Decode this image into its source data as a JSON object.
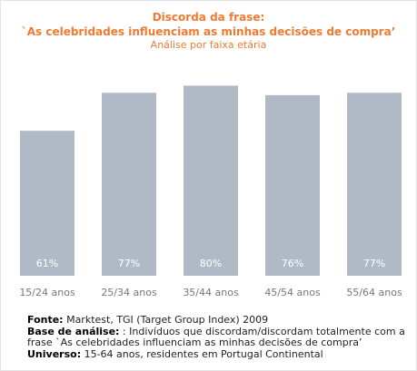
{
  "chart_data": {
    "type": "bar",
    "title": "Discorda da frase:",
    "subtitle": "`As celebridades influenciam as minhas decisões de compra’",
    "subtitle2": "Análise por faixa etária",
    "categories": [
      "15/24 anos",
      "25/34 anos",
      "35/44 anos",
      "45/54 anos",
      "55/64 anos"
    ],
    "values": [
      61,
      77,
      80,
      76,
      77
    ],
    "value_labels": [
      "61%",
      "77%",
      "80%",
      "76%",
      "77%"
    ],
    "ylim": [
      0,
      100
    ],
    "xlabel": "",
    "ylabel": "",
    "grid": false,
    "bar_color": "#b0bac6",
    "label_color": "#ffffff",
    "tick_color": "#777777",
    "title_color": "#f07a32"
  },
  "footer": {
    "source_label": "Fonte:",
    "source_text": " Marktest, TGI (Target Group Index) 2009",
    "base_label": "Base de análise:",
    "base_text": " : Indivíduos que discordam/discordam totalmente com a frase `As celebridades influenciam as minhas decisões de compra’",
    "universe_label": "Universo:",
    "universe_text": " 15-64 anos, residentes em Portugal Continental"
  }
}
